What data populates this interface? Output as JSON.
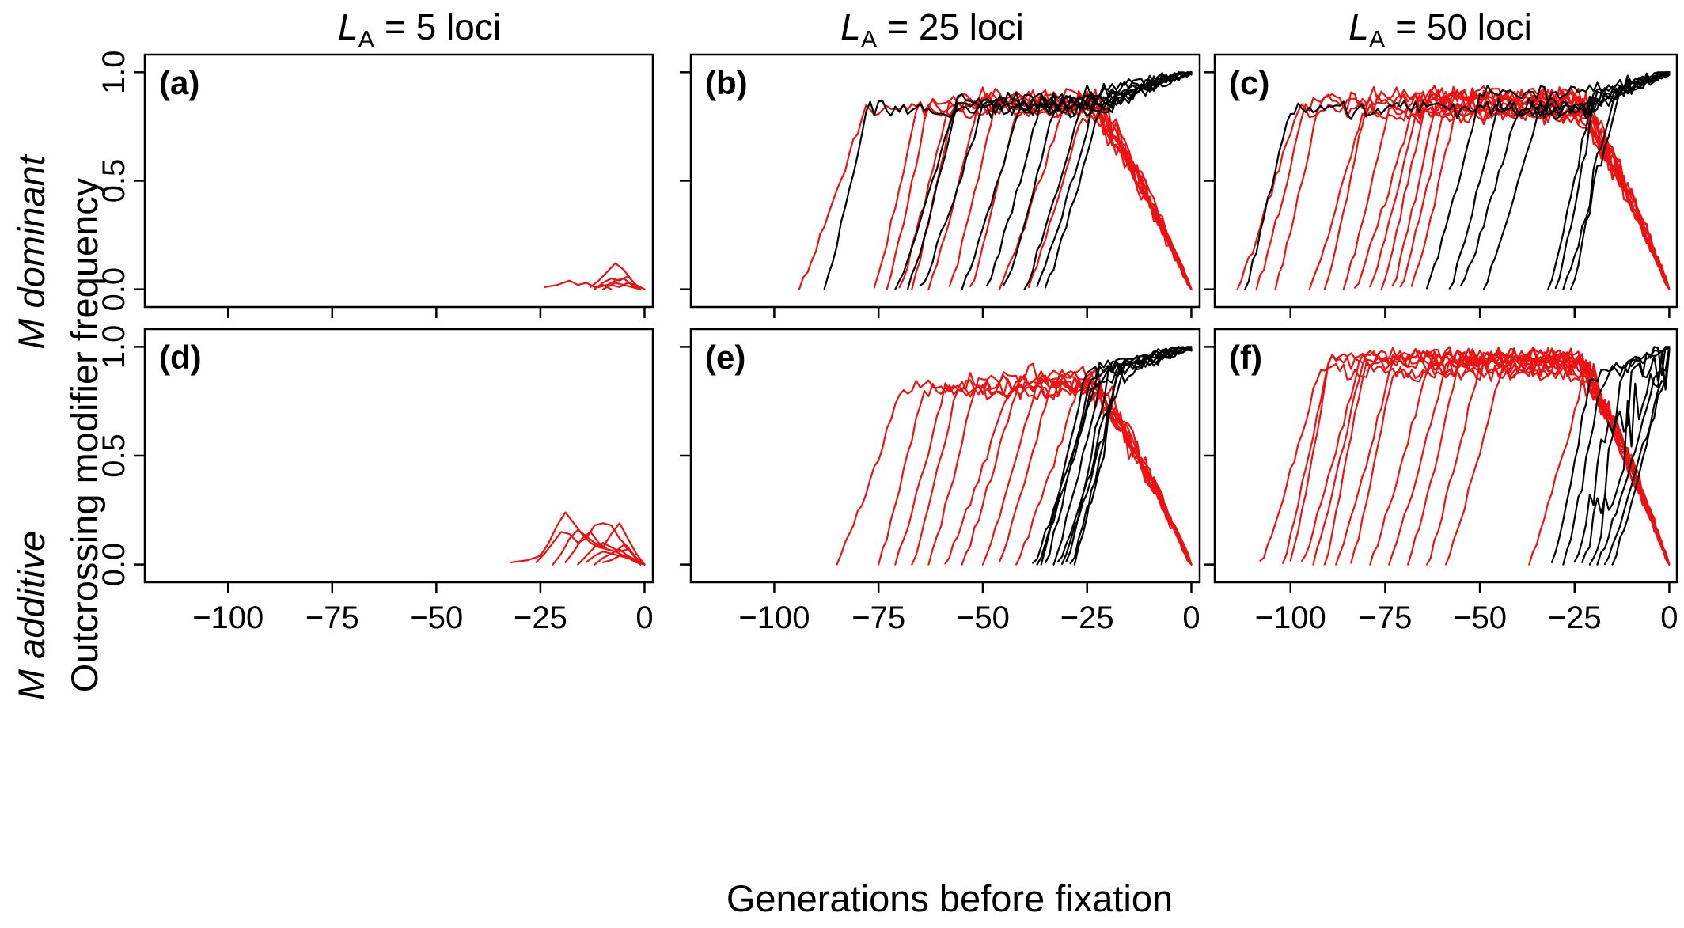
{
  "figure": {
    "col_titles": [
      {
        "var": "L",
        "sub": "A",
        "rest": " = 5 loci"
      },
      {
        "var": "L",
        "sub": "A",
        "rest": " = 25 loci"
      },
      {
        "var": "L",
        "sub": "A",
        "rest": " = 50 loci"
      }
    ],
    "row_labels": [
      "M dominant",
      "M additive"
    ],
    "y_title": "Outcrossing modifier frequency",
    "x_title": "Generations before fixation",
    "colors": {
      "red": "#ee1111",
      "black": "#000000"
    }
  },
  "chart_data": [
    {
      "panel": "(a)",
      "type": "line",
      "xlim": [
        -120,
        2
      ],
      "ylim": [
        0,
        1
      ],
      "xticks": [
        -100,
        -75,
        -50,
        -25,
        0
      ],
      "yticks": [
        0.0,
        0.5,
        1.0
      ],
      "ytick_labels": [
        "0.0",
        "0.5",
        "1.0"
      ],
      "series": [
        {
          "color": "red",
          "x": [
            -24,
            -21,
            -18,
            -16,
            -14,
            -12,
            -10,
            -8
          ],
          "y": [
            0.01,
            0.02,
            0.04,
            0.02,
            0.03,
            0.01,
            0.02,
            0.0
          ]
        },
        {
          "color": "red",
          "x": [
            -13,
            -11,
            -9,
            -7,
            -5,
            -3,
            -1
          ],
          "y": [
            0.01,
            0.04,
            0.08,
            0.12,
            0.09,
            0.04,
            0.0
          ]
        },
        {
          "color": "red",
          "x": [
            -12,
            -10,
            -8,
            -6,
            -4,
            -2,
            0
          ],
          "y": [
            0.0,
            0.03,
            0.05,
            0.04,
            0.06,
            0.02,
            0.0
          ]
        },
        {
          "color": "red",
          "x": [
            -11,
            -9,
            -7,
            -5,
            -3,
            -1
          ],
          "y": [
            0.01,
            0.02,
            0.04,
            0.05,
            0.02,
            0.0
          ]
        },
        {
          "color": "red",
          "x": [
            -10,
            -8,
            -6,
            -4,
            -2,
            0
          ],
          "y": [
            0.0,
            0.02,
            0.01,
            0.03,
            0.02,
            0.0
          ]
        },
        {
          "color": "red",
          "x": [
            -9,
            -7,
            -5,
            -3,
            -1
          ],
          "y": [
            0.01,
            0.03,
            0.02,
            0.01,
            0.0
          ]
        }
      ]
    },
    {
      "panel": "(b)",
      "type": "line",
      "xlim": [
        -120,
        2
      ],
      "ylim": [
        0,
        1
      ],
      "xticks": [
        -100,
        -75,
        -50,
        -25,
        0
      ],
      "yticks": [
        0.0,
        0.5,
        1.0
      ],
      "ytick_labels": [
        "0.0",
        "0.5",
        "1.0"
      ],
      "red_starts": [
        -94,
        -76,
        -73,
        -70,
        -67,
        -63,
        -58,
        -53,
        -46,
        -39
      ],
      "black_starts": [
        -88,
        -71,
        -68,
        -65,
        -55,
        -49,
        -45,
        -40,
        -37,
        -35
      ]
    },
    {
      "panel": "(c)",
      "type": "line",
      "xlim": [
        -120,
        2
      ],
      "ylim": [
        0,
        1
      ],
      "xticks": [
        -100,
        -75,
        -50,
        -25,
        0
      ],
      "yticks": [
        0.0,
        0.5,
        1.0
      ],
      "ytick_labels": [
        "0.0",
        "0.5",
        "1.0"
      ],
      "red_starts": [
        -114,
        -109,
        -104,
        -95,
        -91,
        -86,
        -83,
        -79,
        -76,
        -73,
        -71,
        -68
      ],
      "black_starts": [
        -112,
        -64,
        -58,
        -55,
        -49,
        -32,
        -30,
        -28,
        -26
      ]
    },
    {
      "panel": "(d)",
      "type": "line",
      "xlim": [
        -120,
        2
      ],
      "ylim": [
        0,
        1
      ],
      "xticks": [
        -100,
        -75,
        -50,
        -25,
        0
      ],
      "yticks": [
        0.0,
        0.5,
        1.0
      ],
      "ytick_labels": [
        "0.0",
        "0.5",
        "1.0"
      ],
      "series": [
        {
          "color": "red",
          "x": [
            -32,
            -28,
            -25,
            -23,
            -21,
            -19,
            -17,
            -15,
            -13,
            -11,
            -9,
            -7,
            -5,
            -3,
            -1
          ],
          "y": [
            0.01,
            0.02,
            0.04,
            0.1,
            0.18,
            0.24,
            0.19,
            0.14,
            0.1,
            0.08,
            0.07,
            0.06,
            0.04,
            0.03,
            0.0
          ]
        },
        {
          "color": "red",
          "x": [
            -26,
            -24,
            -22,
            -20,
            -18,
            -16,
            -14,
            -12,
            -10,
            -8,
            -6,
            -4,
            -2,
            0
          ],
          "y": [
            0.01,
            0.05,
            0.1,
            0.15,
            0.14,
            0.1,
            0.12,
            0.18,
            0.19,
            0.18,
            0.12,
            0.08,
            0.03,
            0.0
          ]
        },
        {
          "color": "red",
          "x": [
            -22,
            -20,
            -18,
            -16,
            -14,
            -12,
            -10,
            -8,
            -6,
            -4,
            -2,
            0
          ],
          "y": [
            0.0,
            0.05,
            0.12,
            0.16,
            0.13,
            0.1,
            0.08,
            0.14,
            0.19,
            0.12,
            0.05,
            0.0
          ]
        },
        {
          "color": "red",
          "x": [
            -19,
            -17,
            -15,
            -13,
            -11,
            -9,
            -7,
            -5,
            -3,
            -1
          ],
          "y": [
            0.01,
            0.06,
            0.12,
            0.15,
            0.1,
            0.07,
            0.06,
            0.09,
            0.05,
            0.0
          ]
        },
        {
          "color": "red",
          "x": [
            -16,
            -14,
            -12,
            -10,
            -8,
            -6,
            -4,
            -2,
            0
          ],
          "y": [
            0.0,
            0.04,
            0.08,
            0.1,
            0.08,
            0.06,
            0.07,
            0.03,
            0.0
          ]
        },
        {
          "color": "red",
          "x": [
            -14,
            -12,
            -10,
            -8,
            -6,
            -4,
            -2,
            0
          ],
          "y": [
            0.01,
            0.04,
            0.06,
            0.05,
            0.07,
            0.04,
            0.02,
            0.0
          ]
        },
        {
          "color": "red",
          "x": [
            -12,
            -10,
            -8,
            -6,
            -4,
            -2,
            0
          ],
          "y": [
            0.0,
            0.03,
            0.05,
            0.04,
            0.03,
            0.02,
            0.0
          ]
        },
        {
          "color": "red",
          "x": [
            -10,
            -8,
            -6,
            -4,
            -2,
            0
          ],
          "y": [
            0.01,
            0.02,
            0.04,
            0.03,
            0.01,
            0.0
          ]
        }
      ]
    },
    {
      "panel": "(e)",
      "type": "line",
      "xlim": [
        -120,
        2
      ],
      "ylim": [
        0,
        1
      ],
      "xticks": [
        -100,
        -75,
        -50,
        -25,
        0
      ],
      "yticks": [
        0.0,
        0.5,
        1.0
      ],
      "ytick_labels": [
        "0.0",
        "0.5",
        "1.0"
      ],
      "red_starts": [
        -85,
        -75,
        -71,
        -67,
        -63,
        -59,
        -55,
        -50,
        -46,
        -42
      ],
      "black_starts": [
        -38,
        -37,
        -36,
        -35,
        -33,
        -32,
        -31,
        -30,
        -29,
        -28
      ]
    },
    {
      "panel": "(f)",
      "type": "line",
      "xlim": [
        -120,
        2
      ],
      "ylim": [
        0,
        1
      ],
      "xticks": [
        -100,
        -75,
        -50,
        -25,
        0
      ],
      "yticks": [
        0.0,
        0.5,
        1.0
      ],
      "ytick_labels": [
        "0.0",
        "0.5",
        "1.0"
      ],
      "red_starts": [
        -108,
        -102,
        -100,
        -97,
        -94,
        -91,
        -88,
        -84,
        -79,
        -74,
        -69,
        -64,
        -59,
        -37
      ],
      "black_starts": [
        -31,
        -28,
        -25,
        -23,
        -21,
        -19,
        -17,
        -15
      ]
    }
  ]
}
